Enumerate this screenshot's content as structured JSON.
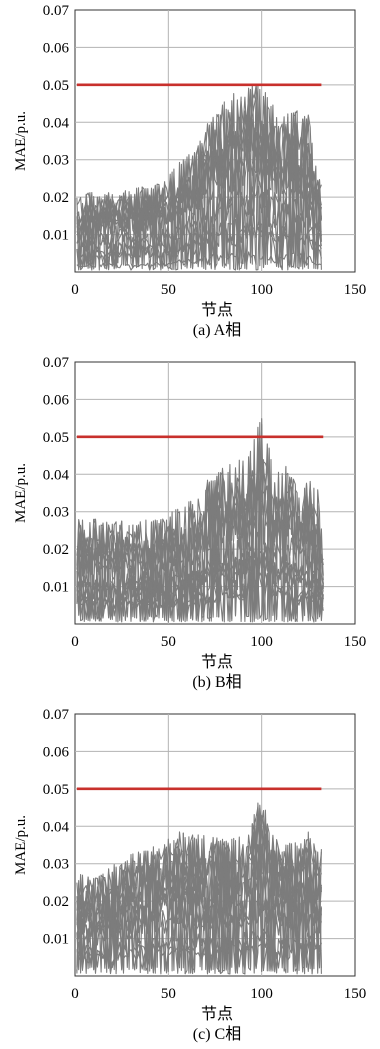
{
  "colors": {
    "grid": "#b3b3b3",
    "traces": "#7c7c7c",
    "threshold": "#c8302c",
    "axis": "#333333"
  },
  "chart_data": [
    {
      "type": "line",
      "caption": "(a) A相",
      "xlabel": "节点",
      "ylabel": "MAE/p.u.",
      "xlim": [
        0,
        150
      ],
      "ylim": [
        0,
        0.07
      ],
      "xticks": [
        "0",
        "50",
        "100",
        "150"
      ],
      "yticks": [
        "0.01",
        "0.02",
        "0.03",
        "0.04",
        "0.05",
        "0.06",
        "0.07"
      ],
      "grid": true,
      "threshold": 0.05,
      "node_range": [
        1,
        132
      ],
      "envelope_max": [
        [
          1,
          0.021
        ],
        [
          30,
          0.022
        ],
        [
          45,
          0.024
        ],
        [
          55,
          0.029
        ],
        [
          65,
          0.033
        ],
        [
          70,
          0.04
        ],
        [
          80,
          0.046
        ],
        [
          85,
          0.048
        ],
        [
          90,
          0.049
        ],
        [
          95,
          0.051
        ],
        [
          100,
          0.05
        ],
        [
          105,
          0.046
        ],
        [
          110,
          0.04
        ],
        [
          115,
          0.045
        ],
        [
          120,
          0.044
        ],
        [
          125,
          0.043
        ],
        [
          130,
          0.025
        ],
        [
          132,
          0.025
        ]
      ]
    },
    {
      "type": "line",
      "caption": "(b) B相",
      "xlabel": "节点",
      "ylabel": "MAE/p.u.",
      "xlim": [
        0,
        150
      ],
      "ylim": [
        0,
        0.07
      ],
      "xticks": [
        "0",
        "50",
        "100",
        "150"
      ],
      "yticks": [
        "0.01",
        "0.02",
        "0.03",
        "0.04",
        "0.05",
        "0.06",
        "0.07"
      ],
      "grid": true,
      "threshold": 0.05,
      "node_range": [
        1,
        133
      ],
      "envelope_max": [
        [
          1,
          0.028
        ],
        [
          30,
          0.028
        ],
        [
          45,
          0.028
        ],
        [
          55,
          0.031
        ],
        [
          65,
          0.035
        ],
        [
          70,
          0.038
        ],
        [
          80,
          0.043
        ],
        [
          85,
          0.043
        ],
        [
          90,
          0.045
        ],
        [
          95,
          0.05
        ],
        [
          100,
          0.055
        ],
        [
          103,
          0.054
        ],
        [
          105,
          0.044
        ],
        [
          110,
          0.041
        ],
        [
          115,
          0.043
        ],
        [
          120,
          0.035
        ],
        [
          125,
          0.039
        ],
        [
          130,
          0.037
        ],
        [
          133,
          0.02
        ]
      ]
    },
    {
      "type": "line",
      "caption": "(c) C相",
      "xlabel": "节点",
      "ylabel": "MAE/p.u.",
      "xlim": [
        0,
        150
      ],
      "ylim": [
        0,
        0.07
      ],
      "xticks": [
        "0",
        "50",
        "100",
        "150"
      ],
      "yticks": [
        "0.01",
        "0.02",
        "0.03",
        "0.04",
        "0.05",
        "0.06",
        "0.07"
      ],
      "grid": true,
      "threshold": 0.05,
      "node_range": [
        1,
        132
      ],
      "envelope_max": [
        [
          1,
          0.027
        ],
        [
          15,
          0.028
        ],
        [
          30,
          0.033
        ],
        [
          45,
          0.035
        ],
        [
          55,
          0.039
        ],
        [
          65,
          0.038
        ],
        [
          75,
          0.037
        ],
        [
          85,
          0.037
        ],
        [
          90,
          0.038
        ],
        [
          95,
          0.043
        ],
        [
          100,
          0.049
        ],
        [
          103,
          0.042
        ],
        [
          110,
          0.035
        ],
        [
          120,
          0.036
        ],
        [
          125,
          0.039
        ],
        [
          130,
          0.035
        ],
        [
          132,
          0.035
        ]
      ]
    }
  ]
}
